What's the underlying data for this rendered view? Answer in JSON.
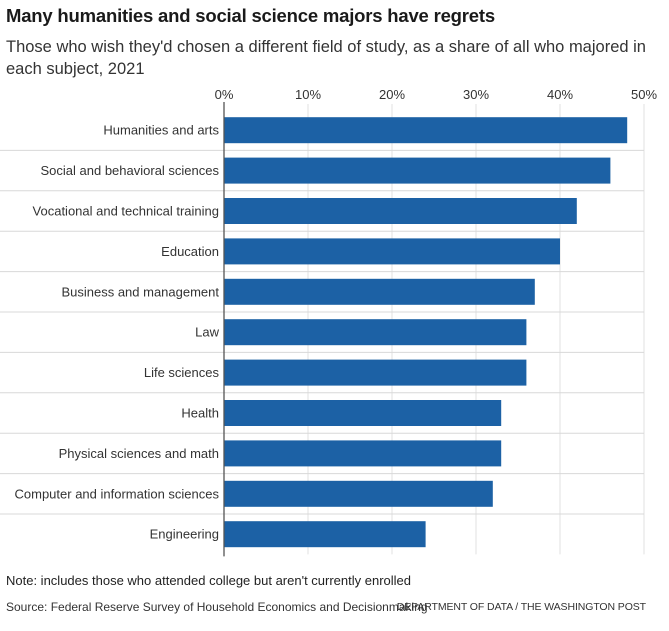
{
  "chart_data": {
    "type": "bar",
    "orientation": "horizontal",
    "title": "Many humanities and social science majors have regrets",
    "subtitle": "Those who wish they'd chosen a different field of study, as a share of all who majored in each subject, 2021",
    "categories": [
      "Humanities and arts",
      "Social and behavioral sciences",
      "Vocational and technical training",
      "Education",
      "Business and management",
      "Law",
      "Life sciences",
      "Health",
      "Physical sciences and math",
      "Computer and information sciences",
      "Engineering"
    ],
    "values": [
      48,
      46,
      42,
      40,
      37,
      36,
      36,
      33,
      33,
      32,
      24
    ],
    "xlim": [
      0,
      50
    ],
    "xticks": [
      0,
      10,
      20,
      30,
      40,
      50
    ],
    "xtick_labels": [
      "0%",
      "10%",
      "20%",
      "30%",
      "40%",
      "50%"
    ],
    "xlabel": "",
    "ylabel": "",
    "grid": true,
    "tick_position": "top",
    "bar_color": "#1c61a5"
  },
  "footer": {
    "note": "Note: includes those who attended college but aren't currently enrolled",
    "source": "Source: Federal Reserve Survey of Household Economics and Decisionmaking",
    "credit": "DEPARTMENT OF DATA / THE WASHINGTON POST"
  }
}
